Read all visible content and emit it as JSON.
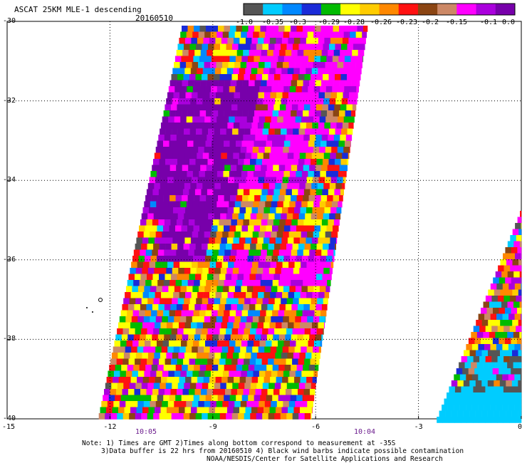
{
  "header": {
    "title": "ASCAT 25KM MLE-1 descending",
    "date": "20160510"
  },
  "colorbar": {
    "colors": [
      "#555555",
      "#00ccff",
      "#0088ff",
      "#1a2bd8",
      "#00bb00",
      "#ffff00",
      "#ffcc00",
      "#ff8800",
      "#ff1111",
      "#8b4513",
      "#cc8866",
      "#ff00ff",
      "#aa00dd",
      "#7700aa"
    ],
    "labels": [
      "-1.0",
      "-0.35",
      "-0.3",
      "-0.29",
      "-0.28",
      "-0.26",
      "-0.23",
      "-0.2",
      "-0.15",
      "-0.1",
      "0.0"
    ]
  },
  "axes": {
    "lat_labels": [
      "-30",
      "-32",
      "-34",
      "-36",
      "-38",
      "-40"
    ],
    "lon_labels": [
      "-15",
      "-12",
      "-9",
      "-6",
      "-3",
      "0"
    ],
    "lat_range": [
      -30,
      -40
    ],
    "lon_range": [
      -15,
      0
    ],
    "grid": "dotted"
  },
  "times": [
    "10:05",
    "10:04"
  ],
  "notes": {
    "line1": "Note: 1) Times are GMT 2)Times along bottom correspond to measurement at -35S",
    "line2": "3)Data buffer is 22 hrs from 20160510 4) Black wind barbs indicate possible contamination",
    "line3": "NOAA/NESDIS/Center for Satellite Applications and Research"
  }
}
